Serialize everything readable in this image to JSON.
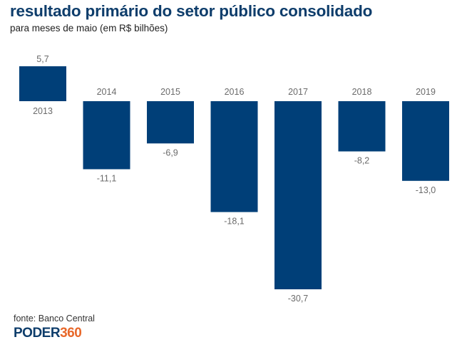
{
  "header": {
    "title": "resultado primário do setor público consolidado",
    "subtitle": "para meses de maio (em R$ bilhões)"
  },
  "footer": {
    "source": "fonte: Banco Central",
    "logo_part1": "PODER",
    "logo_part2": "360"
  },
  "colors": {
    "bar": "#003f78",
    "title": "#0e3d6b",
    "logo_accent": "#e8682a",
    "label": "#6b6b6b"
  },
  "chart_data": {
    "type": "bar",
    "title": "resultado primário do setor público consolidado",
    "subtitle": "para meses de maio (em R$ bilhões)",
    "xlabel": "",
    "ylabel": "",
    "categories": [
      "2013",
      "2014",
      "2015",
      "2016",
      "2017",
      "2018",
      "2019"
    ],
    "values": [
      5.7,
      -11.1,
      -6.9,
      -18.1,
      -30.7,
      -8.2,
      -13.0
    ],
    "value_labels": [
      "5,7",
      "-11,1",
      "-6,9",
      "-18,1",
      "-30,7",
      "-8,2",
      "-13,0"
    ],
    "ylim": [
      -30.7,
      5.7
    ],
    "grid": false,
    "legend": "none",
    "source": "fonte: Banco Central"
  }
}
